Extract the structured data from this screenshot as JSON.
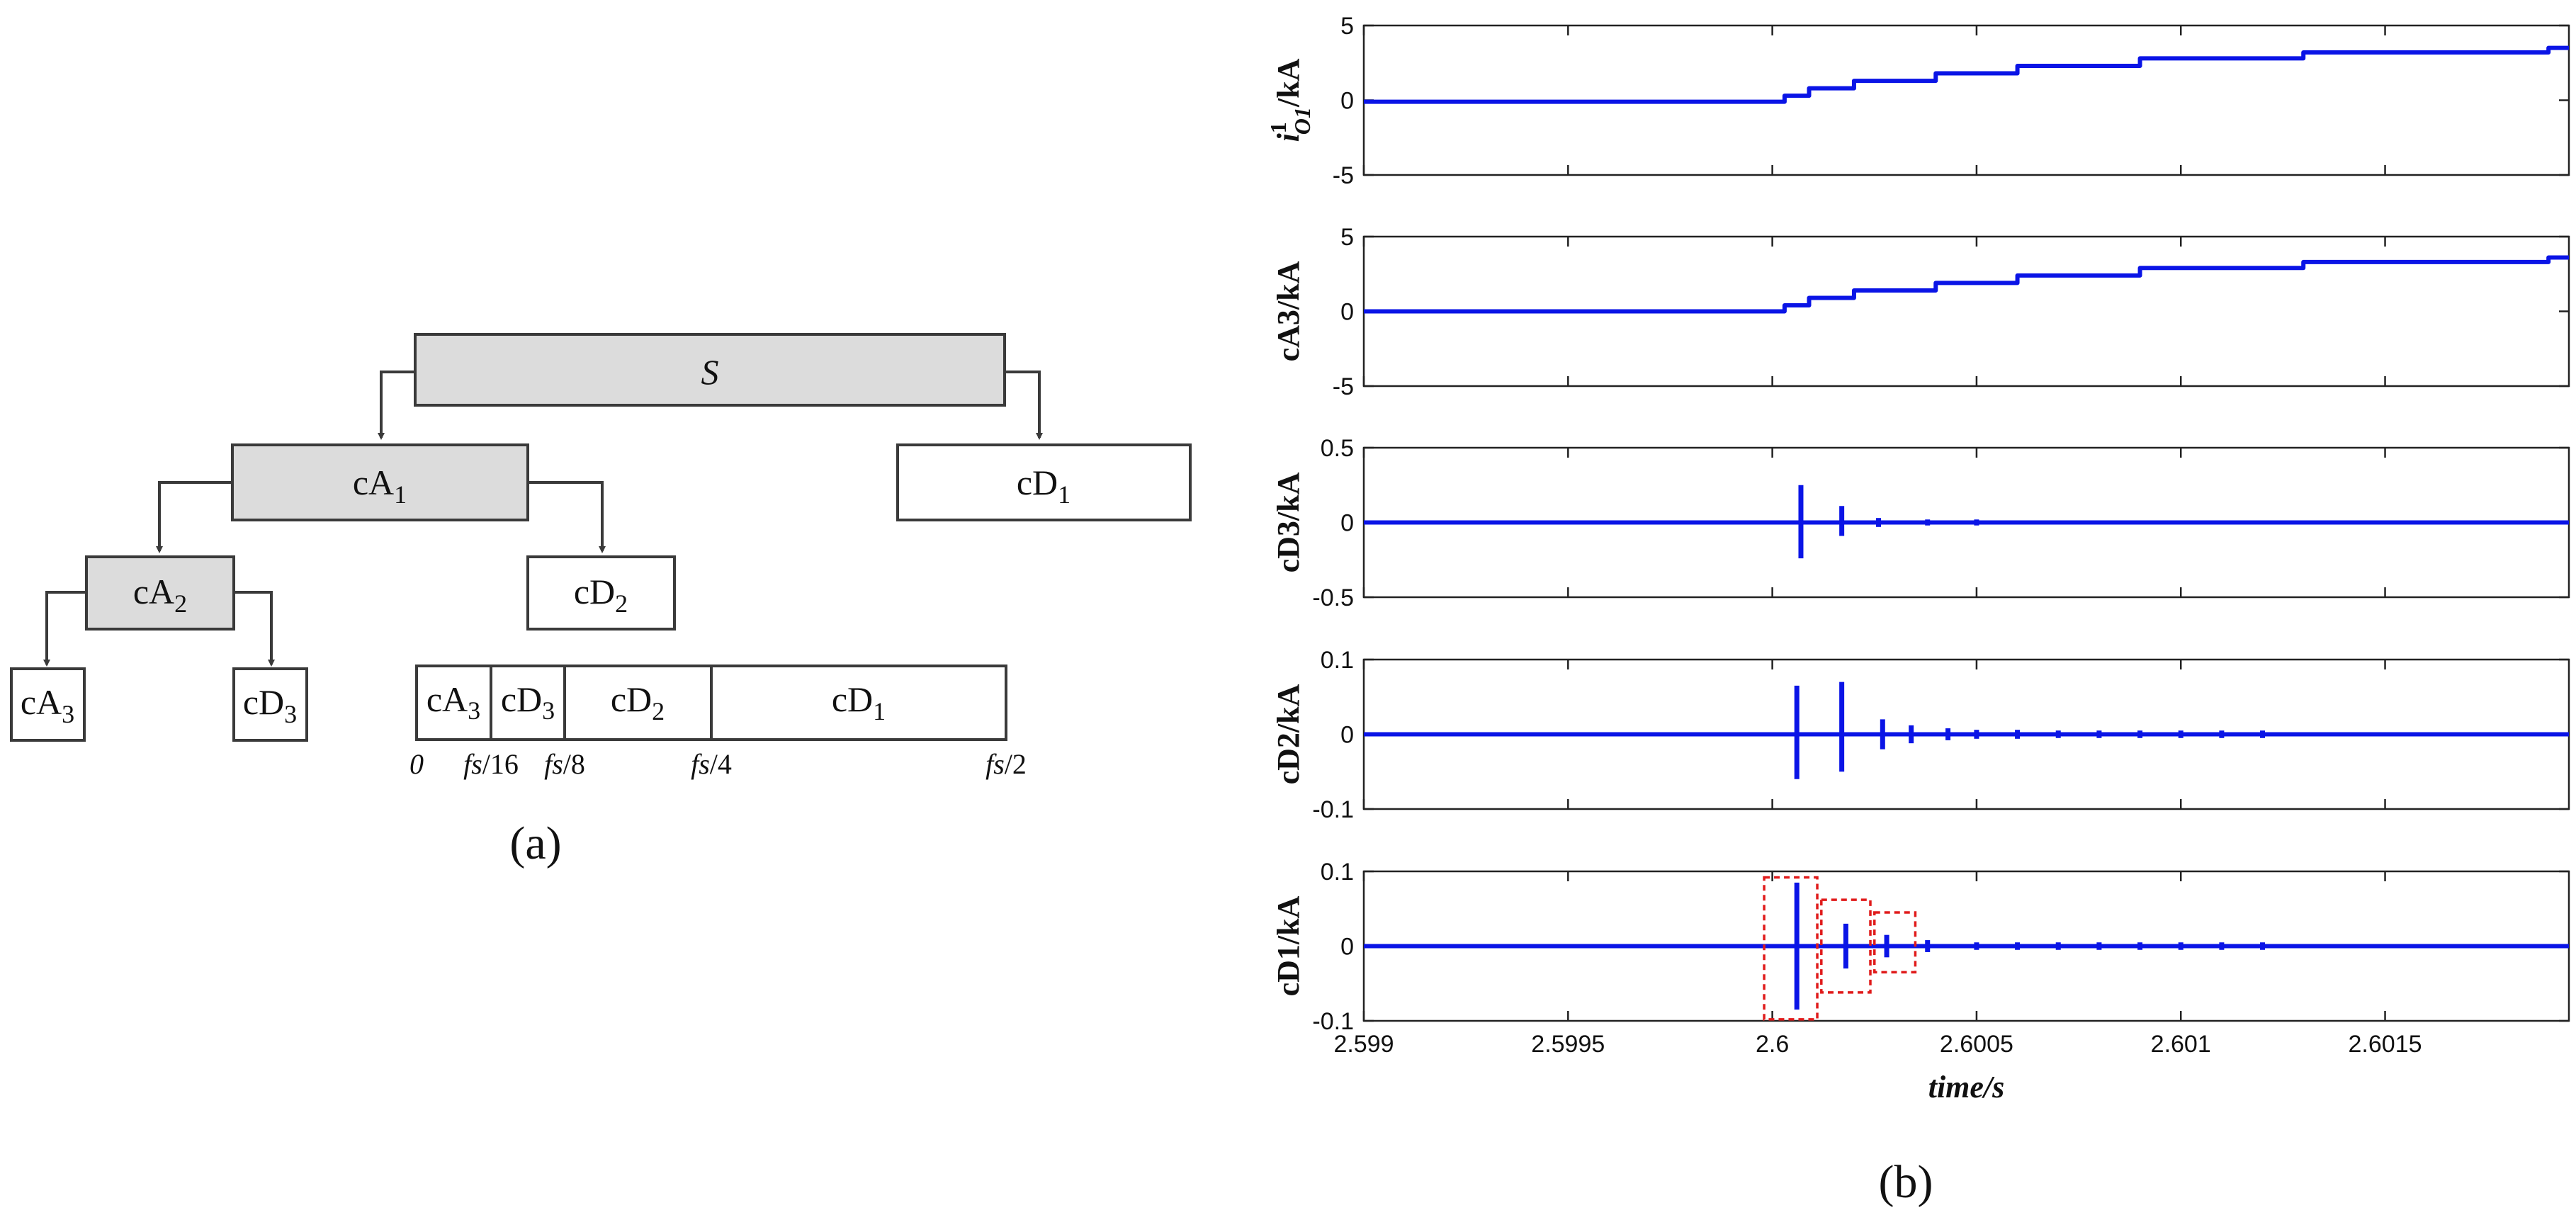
{
  "panel_a": {
    "caption": "(a)",
    "root": "S",
    "nodes": {
      "cA1": {
        "main": "cA",
        "sub": "1"
      },
      "cD1": {
        "main": "cD",
        "sub": "1"
      },
      "cA2": {
        "main": "cA",
        "sub": "2"
      },
      "cD2": {
        "main": "cD",
        "sub": "2"
      },
      "cA3": {
        "main": "cA",
        "sub": "3"
      },
      "cD3": {
        "main": "cD",
        "sub": "3"
      }
    },
    "band": {
      "cells": [
        {
          "main": "cA",
          "sub": "3"
        },
        {
          "main": "cD",
          "sub": "3"
        },
        {
          "main": "cD",
          "sub": "2"
        },
        {
          "main": "cD",
          "sub": "1"
        }
      ],
      "ticks": [
        {
          "it": "0",
          "rest": ""
        },
        {
          "it": "fs",
          "rest": "/16"
        },
        {
          "it": "fs",
          "rest": "/8"
        },
        {
          "it": "fs",
          "rest": "/4"
        },
        {
          "it": "fs",
          "rest": "/2"
        }
      ]
    }
  },
  "panel_b": {
    "caption": "(b)",
    "chart_data": [
      {
        "type": "line",
        "ylabel_main": "i",
        "ylabel_sup": "1",
        "ylabel_sub": "O1",
        "ylabel_unit": "/kA",
        "ylim": [
          -5,
          5
        ],
        "yticks": [
          "5",
          "0",
          "-5"
        ],
        "x": [
          2.599,
          2.59999,
          2.60003,
          2.60009,
          2.6002,
          2.6004,
          2.6006,
          2.6009,
          2.6013,
          2.6019
        ],
        "y": [
          -0.1,
          -0.1,
          0.3,
          0.8,
          1.3,
          1.8,
          2.3,
          2.8,
          3.2,
          3.5
        ]
      },
      {
        "type": "line",
        "ylabel": "cA3/kA",
        "ylim": [
          -5,
          5
        ],
        "yticks": [
          "5",
          "0",
          "-5"
        ],
        "x": [
          2.599,
          2.59999,
          2.60003,
          2.60009,
          2.6002,
          2.6004,
          2.6006,
          2.6009,
          2.6013,
          2.6019
        ],
        "y": [
          0.0,
          0.0,
          0.4,
          0.9,
          1.4,
          1.9,
          2.4,
          2.9,
          3.3,
          3.6
        ]
      },
      {
        "type": "line",
        "ylabel": "cD3/kA",
        "ylim": [
          -0.5,
          0.5
        ],
        "yticks": [
          "0.5",
          "0",
          "-0.5"
        ],
        "bursts": [
          {
            "x": 2.60007,
            "max": 0.25,
            "min": -0.24
          },
          {
            "x": 2.60017,
            "max": 0.11,
            "min": -0.09
          },
          {
            "x": 2.60026,
            "max": 0.03,
            "min": -0.03
          },
          {
            "x": 2.60038,
            "max": 0.02,
            "min": -0.02
          },
          {
            "x": 2.6005,
            "max": 0.02,
            "min": -0.02
          },
          {
            "x": 2.6007,
            "max": 0.01,
            "min": -0.01
          }
        ]
      },
      {
        "type": "line",
        "ylabel": "cD2/kA",
        "ylim": [
          -0.1,
          0.1
        ],
        "yticks": [
          "0.1",
          "0",
          "-0.1"
        ],
        "bursts": [
          {
            "x": 2.60006,
            "max": 0.065,
            "min": -0.06
          },
          {
            "x": 2.60017,
            "max": 0.07,
            "min": -0.05
          },
          {
            "x": 2.60027,
            "max": 0.02,
            "min": -0.02
          },
          {
            "x": 2.60034,
            "max": 0.012,
            "min": -0.012
          },
          {
            "x": 2.60043,
            "max": 0.008,
            "min": -0.008
          },
          {
            "x": 2.6005,
            "max": 0.006,
            "min": -0.006
          },
          {
            "x": 2.6006,
            "max": 0.006,
            "min": -0.006
          },
          {
            "x": 2.6007,
            "max": 0.005,
            "min": -0.005
          },
          {
            "x": 2.6008,
            "max": 0.005,
            "min": -0.005
          },
          {
            "x": 2.6009,
            "max": 0.005,
            "min": -0.005
          },
          {
            "x": 2.601,
            "max": 0.005,
            "min": -0.005
          },
          {
            "x": 2.6011,
            "max": 0.005,
            "min": -0.005
          },
          {
            "x": 2.6012,
            "max": 0.005,
            "min": -0.005
          }
        ]
      },
      {
        "type": "line",
        "ylabel": "cD1/kA",
        "ylim": [
          -0.1,
          0.1
        ],
        "yticks": [
          "0.1",
          "0",
          "-0.1"
        ],
        "xticks": [
          "2.599",
          "2.5995",
          "2.6",
          "2.6005",
          "2.601",
          "2.6015"
        ],
        "xtick_values": [
          2.599,
          2.5995,
          2.6,
          2.6005,
          2.601,
          2.6015
        ],
        "xlim": [
          2.599,
          2.60195
        ],
        "xlabel": "time/s",
        "bursts": [
          {
            "x": 2.60006,
            "max": 0.085,
            "min": -0.085
          },
          {
            "x": 2.60018,
            "max": 0.03,
            "min": -0.03
          },
          {
            "x": 2.60028,
            "max": 0.015,
            "min": -0.015
          },
          {
            "x": 2.60038,
            "max": 0.008,
            "min": -0.008
          },
          {
            "x": 2.6005,
            "max": 0.005,
            "min": -0.005
          },
          {
            "x": 2.6006,
            "max": 0.005,
            "min": -0.005
          },
          {
            "x": 2.6007,
            "max": 0.005,
            "min": -0.005
          },
          {
            "x": 2.6008,
            "max": 0.005,
            "min": -0.005
          },
          {
            "x": 2.6009,
            "max": 0.005,
            "min": -0.005
          },
          {
            "x": 2.601,
            "max": 0.005,
            "min": -0.005
          },
          {
            "x": 2.6011,
            "max": 0.005,
            "min": -0.005
          },
          {
            "x": 2.6012,
            "max": 0.005,
            "min": -0.005
          }
        ],
        "highlight_boxes": [
          {
            "x0": 2.59998,
            "x1": 2.60011,
            "y0": -0.098,
            "y1": 0.092
          },
          {
            "x0": 2.60012,
            "x1": 2.60024,
            "y0": -0.062,
            "y1": 0.062
          },
          {
            "x0": 2.60025,
            "x1": 2.60035,
            "y0": -0.035,
            "y1": 0.045
          }
        ]
      }
    ]
  }
}
